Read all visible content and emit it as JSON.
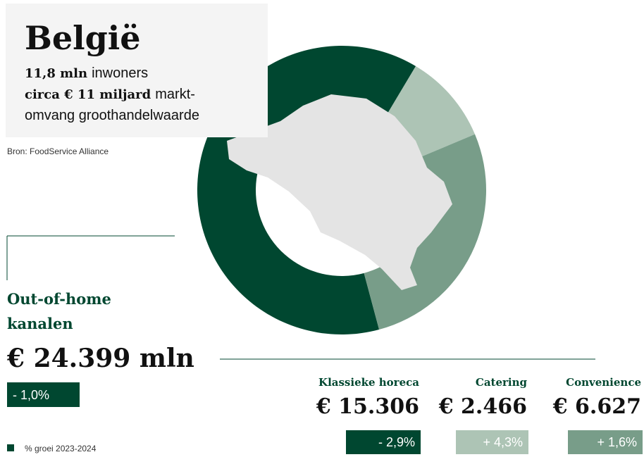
{
  "chart_data": {
    "type": "donut",
    "title": "België",
    "lines": [
      [
        "11,8 mln",
        "inwoners"
      ],
      [
        "circa € 11 miljard",
        "markt-"
      ],
      [
        "omvang groothandelwaarde"
      ]
    ],
    "source": "Bron: FoodService Alliance",
    "total_title": [
      "Out-of-home",
      "kanalen"
    ],
    "total": 24399,
    "total_label": "€ 24.399 mln",
    "total_growth": -1.0,
    "total_growth_label": "- 1,0%",
    "total_color": "#004730",
    "categories": [
      "Klassieke horeca",
      "Catering",
      "Convenience"
    ],
    "values": [
      15306,
      2466,
      6627
    ],
    "value_labels": [
      "€ 15.306",
      "€ 2.466",
      "€ 6.627"
    ],
    "colors": [
      "#004730",
      "#adc4b5",
      "#789d89"
    ],
    "growth": [
      -2.9,
      4.3,
      1.6
    ],
    "growth_labels": [
      "- 2,9%",
      "+ 4,3%",
      "+ 1,6%"
    ],
    "legend": "% groei 2023-2024"
  }
}
